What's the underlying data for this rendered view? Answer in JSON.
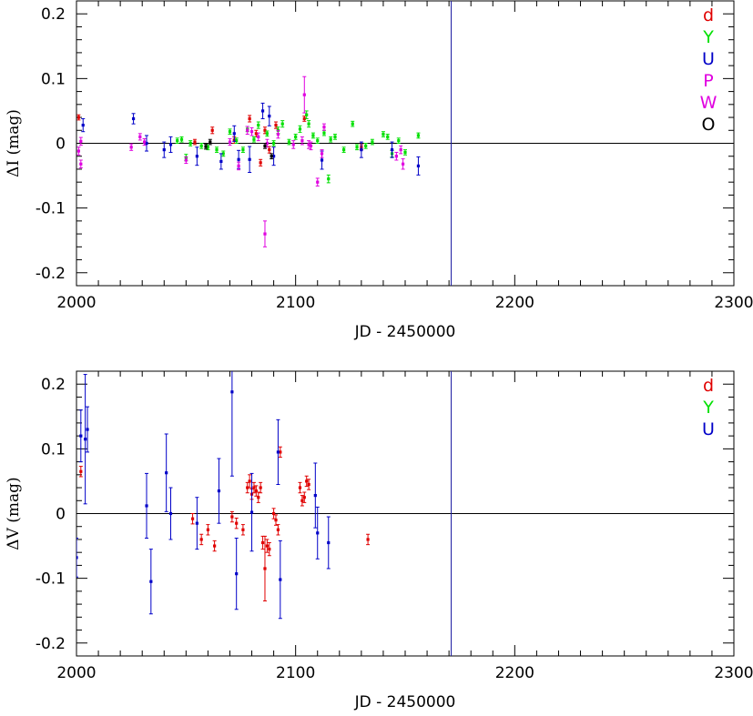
{
  "chart_data": [
    {
      "type": "scatter",
      "title": "",
      "xlabel": "JD - 2450000",
      "ylabel": "ΔI (mag)",
      "xlim": [
        2000,
        2300
      ],
      "ylim": [
        -0.22,
        0.22
      ],
      "xticks": [
        "2000",
        "2100",
        "2200",
        "2300"
      ],
      "yticks": [
        "0.2",
        "0.1",
        "0",
        "-0.1",
        "-0.2"
      ],
      "vline_x": 2171,
      "hline_y": 0,
      "legend_position": "top-right",
      "series": [
        {
          "name": "d",
          "color": "#e00000",
          "points": [
            {
              "x": 2001,
              "y": 0.04,
              "err": 0.004
            },
            {
              "x": 2054,
              "y": 0.002,
              "err": 0.004
            },
            {
              "x": 2062,
              "y": 0.02,
              "err": 0.005
            },
            {
              "x": 2072,
              "y": 0.005,
              "err": 0.005
            },
            {
              "x": 2079,
              "y": 0.038,
              "err": 0.005
            },
            {
              "x": 2082,
              "y": 0.015,
              "err": 0.005
            },
            {
              "x": 2084,
              "y": -0.03,
              "err": 0.005
            },
            {
              "x": 2086,
              "y": 0.02,
              "err": 0.005
            },
            {
              "x": 2088,
              "y": -0.01,
              "err": 0.005
            },
            {
              "x": 2091,
              "y": 0.028,
              "err": 0.005
            },
            {
              "x": 2104,
              "y": 0.038,
              "err": 0.004
            },
            {
              "x": 2130,
              "y": -0.006,
              "err": 0.004
            }
          ]
        },
        {
          "name": "Y",
          "color": "#00e000",
          "points": [
            {
              "x": 2046,
              "y": 0.004,
              "err": 0.004
            },
            {
              "x": 2048,
              "y": 0.006,
              "err": 0.004
            },
            {
              "x": 2050,
              "y": -0.022,
              "err": 0.005
            },
            {
              "x": 2052,
              "y": 0.0,
              "err": 0.004
            },
            {
              "x": 2057,
              "y": -0.004,
              "err": 0.004
            },
            {
              "x": 2060,
              "y": -0.006,
              "err": 0.004
            },
            {
              "x": 2064,
              "y": -0.01,
              "err": 0.004
            },
            {
              "x": 2067,
              "y": -0.016,
              "err": 0.004
            },
            {
              "x": 2070,
              "y": 0.018,
              "err": 0.004
            },
            {
              "x": 2073,
              "y": 0.004,
              "err": 0.004
            },
            {
              "x": 2076,
              "y": -0.01,
              "err": 0.004
            },
            {
              "x": 2078,
              "y": 0.022,
              "err": 0.004
            },
            {
              "x": 2081,
              "y": 0.006,
              "err": 0.004
            },
            {
              "x": 2083,
              "y": 0.028,
              "err": 0.005
            },
            {
              "x": 2087,
              "y": 0.015,
              "err": 0.004
            },
            {
              "x": 2090,
              "y": 0.0,
              "err": 0.004
            },
            {
              "x": 2092,
              "y": 0.02,
              "err": 0.005
            },
            {
              "x": 2094,
              "y": 0.03,
              "err": 0.005
            },
            {
              "x": 2097,
              "y": 0.002,
              "err": 0.004
            },
            {
              "x": 2100,
              "y": 0.01,
              "err": 0.004
            },
            {
              "x": 2102,
              "y": 0.022,
              "err": 0.005
            },
            {
              "x": 2105,
              "y": 0.044,
              "err": 0.006
            },
            {
              "x": 2106,
              "y": 0.03,
              "err": 0.005
            },
            {
              "x": 2108,
              "y": 0.012,
              "err": 0.004
            },
            {
              "x": 2110,
              "y": 0.004,
              "err": 0.004
            },
            {
              "x": 2113,
              "y": 0.016,
              "err": 0.004
            },
            {
              "x": 2115,
              "y": -0.055,
              "err": 0.006
            },
            {
              "x": 2116,
              "y": 0.006,
              "err": 0.004
            },
            {
              "x": 2118,
              "y": 0.01,
              "err": 0.004
            },
            {
              "x": 2122,
              "y": -0.01,
              "err": 0.004
            },
            {
              "x": 2126,
              "y": 0.03,
              "err": 0.004
            },
            {
              "x": 2128,
              "y": -0.006,
              "err": 0.004
            },
            {
              "x": 2132,
              "y": -0.004,
              "err": 0.004
            },
            {
              "x": 2135,
              "y": 0.002,
              "err": 0.004
            },
            {
              "x": 2140,
              "y": 0.014,
              "err": 0.004
            },
            {
              "x": 2142,
              "y": 0.01,
              "err": 0.004
            },
            {
              "x": 2144,
              "y": -0.016,
              "err": 0.005
            },
            {
              "x": 2147,
              "y": 0.004,
              "err": 0.004
            },
            {
              "x": 2150,
              "y": -0.014,
              "err": 0.004
            },
            {
              "x": 2156,
              "y": 0.012,
              "err": 0.004
            }
          ]
        },
        {
          "name": "U",
          "color": "#0000c8",
          "points": [
            {
              "x": 2003,
              "y": 0.028,
              "err": 0.01
            },
            {
              "x": 2026,
              "y": 0.038,
              "err": 0.008
            },
            {
              "x": 2032,
              "y": 0.0,
              "err": 0.012
            },
            {
              "x": 2040,
              "y": -0.01,
              "err": 0.012
            },
            {
              "x": 2043,
              "y": -0.002,
              "err": 0.012
            },
            {
              "x": 2055,
              "y": -0.02,
              "err": 0.014
            },
            {
              "x": 2066,
              "y": -0.028,
              "err": 0.012
            },
            {
              "x": 2072,
              "y": 0.015,
              "err": 0.012
            },
            {
              "x": 2074,
              "y": -0.025,
              "err": 0.014
            },
            {
              "x": 2079,
              "y": -0.025,
              "err": 0.02
            },
            {
              "x": 2085,
              "y": 0.05,
              "err": 0.012
            },
            {
              "x": 2088,
              "y": 0.042,
              "err": 0.015
            },
            {
              "x": 2090,
              "y": -0.02,
              "err": 0.014
            },
            {
              "x": 2112,
              "y": -0.026,
              "err": 0.014
            },
            {
              "x": 2130,
              "y": -0.01,
              "err": 0.012
            },
            {
              "x": 2144,
              "y": -0.01,
              "err": 0.012
            },
            {
              "x": 2156,
              "y": -0.035,
              "err": 0.014
            }
          ]
        },
        {
          "name": "P",
          "color": "#e000e0",
          "points": [
            {
              "x": 2001,
              "y": -0.012,
              "err": 0.006
            },
            {
              "x": 2002,
              "y": 0.003,
              "err": 0.006
            },
            {
              "x": 2025,
              "y": -0.006,
              "err": 0.005
            },
            {
              "x": 2031,
              "y": 0.002,
              "err": 0.005
            },
            {
              "x": 2050,
              "y": -0.026,
              "err": 0.005
            },
            {
              "x": 2074,
              "y": -0.035,
              "err": 0.006
            },
            {
              "x": 2078,
              "y": 0.02,
              "err": 0.006
            },
            {
              "x": 2086,
              "y": -0.14,
              "err": 0.02
            },
            {
              "x": 2104,
              "y": 0.075,
              "err": 0.028
            },
            {
              "x": 2106,
              "y": -0.002,
              "err": 0.006
            },
            {
              "x": 2110,
              "y": -0.06,
              "err": 0.006
            },
            {
              "x": 2113,
              "y": 0.025,
              "err": 0.005
            },
            {
              "x": 2146,
              "y": -0.02,
              "err": 0.006
            }
          ]
        },
        {
          "name": "W",
          "color": "#e000e0",
          "points": [
            {
              "x": 2002,
              "y": -0.032,
              "err": 0.006
            },
            {
              "x": 2029,
              "y": 0.01,
              "err": 0.005
            },
            {
              "x": 2070,
              "y": 0.002,
              "err": 0.005
            },
            {
              "x": 2080,
              "y": 0.018,
              "err": 0.006
            },
            {
              "x": 2083,
              "y": 0.01,
              "err": 0.006
            },
            {
              "x": 2087,
              "y": 0.0,
              "err": 0.006
            },
            {
              "x": 2092,
              "y": 0.014,
              "err": 0.006
            },
            {
              "x": 2099,
              "y": -0.002,
              "err": 0.006
            },
            {
              "x": 2103,
              "y": 0.004,
              "err": 0.006
            },
            {
              "x": 2107,
              "y": -0.004,
              "err": 0.006
            },
            {
              "x": 2112,
              "y": -0.016,
              "err": 0.006
            },
            {
              "x": 2148,
              "y": -0.01,
              "err": 0.006
            },
            {
              "x": 2149,
              "y": -0.032,
              "err": 0.008
            }
          ]
        },
        {
          "name": "O",
          "color": "#000000",
          "points": [
            {
              "x": 2059,
              "y": -0.005,
              "err": 0.004
            },
            {
              "x": 2061,
              "y": 0.002,
              "err": 0.004
            },
            {
              "x": 2086,
              "y": -0.004,
              "err": 0.004
            },
            {
              "x": 2089,
              "y": -0.02,
              "err": 0.004
            }
          ]
        }
      ]
    },
    {
      "type": "scatter",
      "title": "",
      "xlabel": "JD - 2450000",
      "ylabel": "ΔV (mag)",
      "xlim": [
        2000,
        2300
      ],
      "ylim": [
        -0.22,
        0.22
      ],
      "xticks": [
        "2000",
        "2100",
        "2200",
        "2300"
      ],
      "yticks": [
        "0.2",
        "0.1",
        "0",
        "-0.1",
        "-0.2"
      ],
      "vline_x": 2171,
      "hline_y": 0,
      "legend_position": "top-right",
      "series": [
        {
          "name": "d",
          "color": "#e00000",
          "points": [
            {
              "x": 2002,
              "y": 0.065,
              "err": 0.008
            },
            {
              "x": 2053,
              "y": -0.008,
              "err": 0.008
            },
            {
              "x": 2057,
              "y": -0.04,
              "err": 0.008
            },
            {
              "x": 2060,
              "y": -0.025,
              "err": 0.008
            },
            {
              "x": 2063,
              "y": -0.05,
              "err": 0.008
            },
            {
              "x": 2071,
              "y": -0.005,
              "err": 0.008
            },
            {
              "x": 2073,
              "y": -0.015,
              "err": 0.008
            },
            {
              "x": 2076,
              "y": -0.025,
              "err": 0.008
            },
            {
              "x": 2078,
              "y": 0.04,
              "err": 0.008
            },
            {
              "x": 2079,
              "y": 0.05,
              "err": 0.01
            },
            {
              "x": 2080,
              "y": 0.03,
              "err": 0.008
            },
            {
              "x": 2081,
              "y": 0.04,
              "err": 0.008
            },
            {
              "x": 2082,
              "y": 0.035,
              "err": 0.008
            },
            {
              "x": 2083,
              "y": 0.025,
              "err": 0.008
            },
            {
              "x": 2084,
              "y": 0.04,
              "err": 0.008
            },
            {
              "x": 2085,
              "y": -0.045,
              "err": 0.01
            },
            {
              "x": 2086,
              "y": -0.085,
              "err": 0.05
            },
            {
              "x": 2087,
              "y": -0.05,
              "err": 0.01
            },
            {
              "x": 2088,
              "y": -0.055,
              "err": 0.01
            },
            {
              "x": 2090,
              "y": 0.0,
              "err": 0.008
            },
            {
              "x": 2091,
              "y": -0.01,
              "err": 0.008
            },
            {
              "x": 2092,
              "y": -0.025,
              "err": 0.008
            },
            {
              "x": 2093,
              "y": 0.095,
              "err": 0.008
            },
            {
              "x": 2102,
              "y": 0.04,
              "err": 0.008
            },
            {
              "x": 2103,
              "y": 0.02,
              "err": 0.008
            },
            {
              "x": 2104,
              "y": 0.025,
              "err": 0.008
            },
            {
              "x": 2105,
              "y": 0.05,
              "err": 0.008
            },
            {
              "x": 2106,
              "y": 0.045,
              "err": 0.008
            },
            {
              "x": 2133,
              "y": -0.04,
              "err": 0.008
            }
          ]
        },
        {
          "name": "Y",
          "color": "#00e000",
          "points": []
        },
        {
          "name": "U",
          "color": "#0000c8",
          "points": [
            {
              "x": 2000,
              "y": -0.068,
              "err": 0.03
            },
            {
              "x": 2002,
              "y": 0.12,
              "err": 0.04
            },
            {
              "x": 2004,
              "y": 0.115,
              "err": 0.1
            },
            {
              "x": 2005,
              "y": 0.13,
              "err": 0.035
            },
            {
              "x": 2032,
              "y": 0.012,
              "err": 0.05
            },
            {
              "x": 2034,
              "y": -0.105,
              "err": 0.05
            },
            {
              "x": 2041,
              "y": 0.063,
              "err": 0.06
            },
            {
              "x": 2043,
              "y": 0.0,
              "err": 0.04
            },
            {
              "x": 2055,
              "y": -0.015,
              "err": 0.04
            },
            {
              "x": 2065,
              "y": 0.035,
              "err": 0.05
            },
            {
              "x": 2071,
              "y": 0.188,
              "err": 0.13
            },
            {
              "x": 2073,
              "y": -0.093,
              "err": 0.055
            },
            {
              "x": 2080,
              "y": 0.002,
              "err": 0.06
            },
            {
              "x": 2092,
              "y": 0.095,
              "err": 0.05
            },
            {
              "x": 2093,
              "y": -0.102,
              "err": 0.06
            },
            {
              "x": 2109,
              "y": 0.028,
              "err": 0.05
            },
            {
              "x": 2110,
              "y": -0.03,
              "err": 0.04
            },
            {
              "x": 2115,
              "y": -0.045,
              "err": 0.04
            }
          ]
        }
      ]
    }
  ]
}
